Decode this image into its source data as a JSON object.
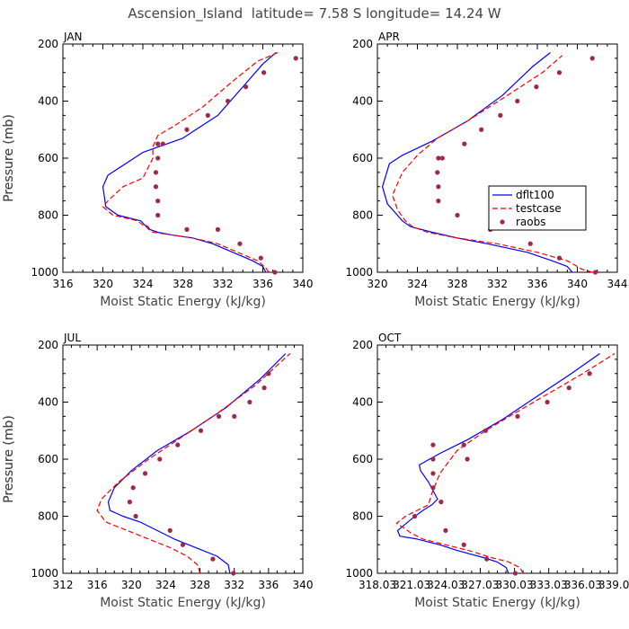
{
  "figure": {
    "title": "Ascension_Island  latitude= 7.58 S longitude= 14.24 W"
  },
  "colors": {
    "dflt100": "#0000ff",
    "testcase": "#ff0000",
    "raobs": "#a0284a"
  },
  "chart_data": [
    {
      "type": "line",
      "panel_label": "JAN",
      "xlabel": "Moist Static Energy (kJ/kg)",
      "ylabel": "Pressure (mb)",
      "xlim": [
        316,
        340
      ],
      "ylim": [
        1000,
        200
      ],
      "xticks": [
        316,
        320,
        324,
        328,
        332,
        336,
        340
      ],
      "xtick_labels": [
        "316",
        "320",
        "324",
        "328",
        "332",
        "336",
        "340"
      ],
      "yticks": [
        200,
        400,
        600,
        800,
        1000
      ],
      "ytick_labels": [
        "200",
        "400",
        "600",
        "800",
        "1000"
      ],
      "legend": null,
      "series": [
        {
          "key": "dflt100",
          "style": "solid",
          "x": [
            336.3,
            336.0,
            335.0,
            333.0,
            331.0,
            329.0,
            327.0,
            325.5,
            324.7,
            324.5,
            324.2,
            323.8,
            321.5,
            320.3,
            320.0,
            320.5,
            324.0,
            328.0,
            331.5,
            334.0,
            336.0,
            337.3
          ],
          "y": [
            1000,
            980,
            960,
            930,
            900,
            880,
            870,
            860,
            850,
            840,
            835,
            820,
            800,
            770,
            700,
            660,
            580,
            530,
            450,
            350,
            270,
            230
          ]
        },
        {
          "key": "testcase",
          "style": "dashed",
          "x": [
            336.6,
            336.3,
            335.5,
            333.5,
            331.5,
            329.0,
            327.0,
            325.0,
            324.6,
            324.3,
            324.0,
            323.5,
            321.0,
            320.0,
            320.5,
            322.0,
            324.0,
            325.0,
            325.0,
            325.5,
            327.0,
            330.0,
            333.0,
            335.5,
            337.5
          ],
          "y": [
            1000,
            985,
            960,
            930,
            900,
            880,
            870,
            860,
            850,
            840,
            835,
            820,
            800,
            770,
            750,
            700,
            670,
            600,
            560,
            520,
            490,
            420,
            330,
            260,
            230
          ]
        },
        {
          "key": "raobs",
          "style": "markers",
          "x": [
            337.2,
            335.8,
            333.7,
            331.5,
            328.4,
            325.5,
            325.5,
            325.3,
            325.3,
            325.5,
            325.5,
            326.0,
            328.4,
            330.5,
            332.5,
            334.3,
            336.1,
            339.3
          ],
          "y": [
            1000,
            950,
            900,
            850,
            850,
            800,
            750,
            700,
            650,
            600,
            550,
            550,
            500,
            450,
            400,
            350,
            300,
            250
          ]
        }
      ]
    },
    {
      "type": "line",
      "panel_label": "APR",
      "xlabel": "Moist Static Energy (kJ/kg)",
      "ylabel": "Pressure (mb)",
      "xlim": [
        320,
        344
      ],
      "ylim": [
        1000,
        200
      ],
      "xticks": [
        320,
        324,
        328,
        332,
        336,
        340,
        344
      ],
      "xtick_labels": [
        "320",
        "324",
        "328",
        "332",
        "336",
        "340",
        "344"
      ],
      "yticks": [
        200,
        400,
        600,
        800,
        1000
      ],
      "ytick_labels": [
        "200",
        "400",
        "600",
        "800",
        "1000"
      ],
      "legend": {
        "position": "middle-right",
        "entries": [
          "dflt100",
          "testcase",
          "raobs"
        ]
      },
      "series": [
        {
          "key": "dflt100",
          "style": "solid",
          "x": [
            339.5,
            339.0,
            337.5,
            335.0,
            331.0,
            328.0,
            325.5,
            323.3,
            322.5,
            322.0,
            321.0,
            320.5,
            321.2,
            322.5,
            325.5,
            329.0,
            332.5,
            335.5,
            337.3
          ],
          "y": [
            1000,
            980,
            960,
            930,
            900,
            880,
            860,
            840,
            820,
            800,
            760,
            700,
            620,
            590,
            540,
            470,
            380,
            280,
            230
          ]
        },
        {
          "key": "testcase",
          "style": "dashed",
          "x": [
            341.5,
            340.5,
            339.0,
            336.0,
            332.0,
            328.0,
            325.0,
            323.5,
            322.8,
            322.0,
            321.5,
            322.5,
            324.0,
            326.0,
            329.0,
            333.0,
            336.5,
            338.5
          ],
          "y": [
            1000,
            990,
            960,
            930,
            900,
            880,
            860,
            840,
            820,
            780,
            730,
            650,
            590,
            530,
            470,
            380,
            300,
            240
          ]
        },
        {
          "key": "raobs",
          "style": "markers",
          "x": [
            341.8,
            338.2,
            335.3,
            331.3,
            328.0,
            326.1,
            326.1,
            326.0,
            326.1,
            326.5,
            328.7,
            330.4,
            332.3,
            334.0,
            335.9,
            338.2,
            341.5
          ],
          "y": [
            1000,
            950,
            900,
            850,
            800,
            750,
            700,
            650,
            600,
            600,
            550,
            500,
            450,
            400,
            350,
            300,
            250
          ]
        }
      ]
    },
    {
      "type": "line",
      "panel_label": "JUL",
      "xlabel": "Moist Static Energy (kJ/kg)",
      "ylabel": "Pressure (mb)",
      "xlim": [
        312,
        340
      ],
      "ylim": [
        1000,
        200
      ],
      "xticks": [
        312,
        316,
        320,
        324,
        328,
        332,
        336,
        340
      ],
      "xtick_labels": [
        "312",
        "316",
        "320",
        "324",
        "328",
        "332",
        "336",
        "340"
      ],
      "yticks": [
        200,
        400,
        600,
        800,
        1000
      ],
      "ytick_labels": [
        "200",
        "400",
        "600",
        "800",
        "1000"
      ],
      "legend": null,
      "series": [
        {
          "key": "dflt100",
          "style": "solid",
          "x": [
            331.5,
            331.3,
            330.0,
            327.5,
            325.0,
            323.0,
            321.0,
            319.0,
            317.5,
            317.3,
            318.0,
            320.0,
            323.0,
            327.0,
            331.0,
            335.0,
            338.0
          ],
          "y": [
            1000,
            970,
            940,
            910,
            880,
            850,
            820,
            800,
            780,
            750,
            700,
            640,
            570,
            500,
            420,
            320,
            230
          ]
        },
        {
          "key": "testcase",
          "style": "dashed",
          "x": [
            328.0,
            327.7,
            326.5,
            324.5,
            322.0,
            319.5,
            317.0,
            316.0,
            316.5,
            318.5,
            322.0,
            326.0,
            330.0,
            334.5,
            338.5
          ],
          "y": [
            1000,
            970,
            940,
            910,
            880,
            850,
            820,
            780,
            740,
            680,
            600,
            520,
            440,
            340,
            230
          ]
        },
        {
          "key": "raobs",
          "style": "markers",
          "x": [
            331.9,
            329.5,
            326.0,
            324.5,
            320.5,
            319.8,
            320.2,
            321.6,
            323.3,
            325.4,
            328.1,
            330.2,
            332.0,
            333.8,
            335.5,
            336.0
          ],
          "y": [
            1000,
            950,
            900,
            850,
            800,
            750,
            700,
            650,
            600,
            550,
            500,
            450,
            450,
            400,
            350,
            300
          ]
        }
      ]
    },
    {
      "type": "line",
      "panel_label": "OCT",
      "xlabel": "Moist Static Energy (kJ/kg)",
      "ylabel": "Pressure (mb)",
      "xlim": [
        318.03,
        339.03
      ],
      "ylim": [
        1000,
        200
      ],
      "xticks": [
        318.03,
        321.03,
        324.03,
        327.03,
        330.03,
        333.03,
        336.03,
        339.03
      ],
      "xtick_labels": [
        "318.03",
        "321.03",
        "324.03",
        "327.03",
        "330.03",
        "333.03",
        "336.03",
        "339.03"
      ],
      "yticks": [
        200,
        400,
        600,
        800,
        1000
      ],
      "ytick_labels": [
        "200",
        "400",
        "600",
        "800",
        "1000"
      ],
      "legend": null,
      "series": [
        {
          "key": "dflt100",
          "style": "solid",
          "x": [
            329.5,
            329.3,
            328.5,
            327.3,
            325.0,
            323.5,
            321.5,
            320.0,
            319.8,
            321.0,
            322.0,
            322.8,
            323.3,
            322.5,
            321.8,
            321.7,
            323.5,
            326.0,
            329.0,
            332.0,
            335.0,
            337.5
          ],
          "y": [
            1000,
            980,
            960,
            945,
            920,
            900,
            880,
            870,
            850,
            810,
            780,
            760,
            740,
            680,
            640,
            620,
            580,
            530,
            460,
            380,
            300,
            230
          ]
        },
        {
          "key": "testcase",
          "style": "dashed",
          "x": [
            330.8,
            330.5,
            329.5,
            328.0,
            326.0,
            324.0,
            322.0,
            321.0,
            320.5,
            319.7,
            320.5,
            321.5,
            322.5,
            322.8,
            323.5,
            325.0,
            327.5,
            330.0,
            333.0,
            336.0,
            338.8
          ],
          "y": [
            1000,
            980,
            960,
            945,
            920,
            900,
            880,
            860,
            845,
            825,
            800,
            780,
            760,
            720,
            650,
            570,
            500,
            440,
            370,
            300,
            230
          ]
        },
        {
          "key": "raobs",
          "style": "markers",
          "x": [
            330.1,
            327.6,
            325.6,
            324.0,
            323.6,
            321.3,
            322.9,
            322.9,
            322.9,
            322.9,
            325.9,
            325.6,
            327.5,
            330.3,
            332.9,
            334.8,
            336.6
          ],
          "y": [
            1000,
            950,
            900,
            850,
            750,
            800,
            700,
            650,
            600,
            550,
            600,
            550,
            500,
            450,
            400,
            350,
            300
          ]
        }
      ]
    }
  ]
}
